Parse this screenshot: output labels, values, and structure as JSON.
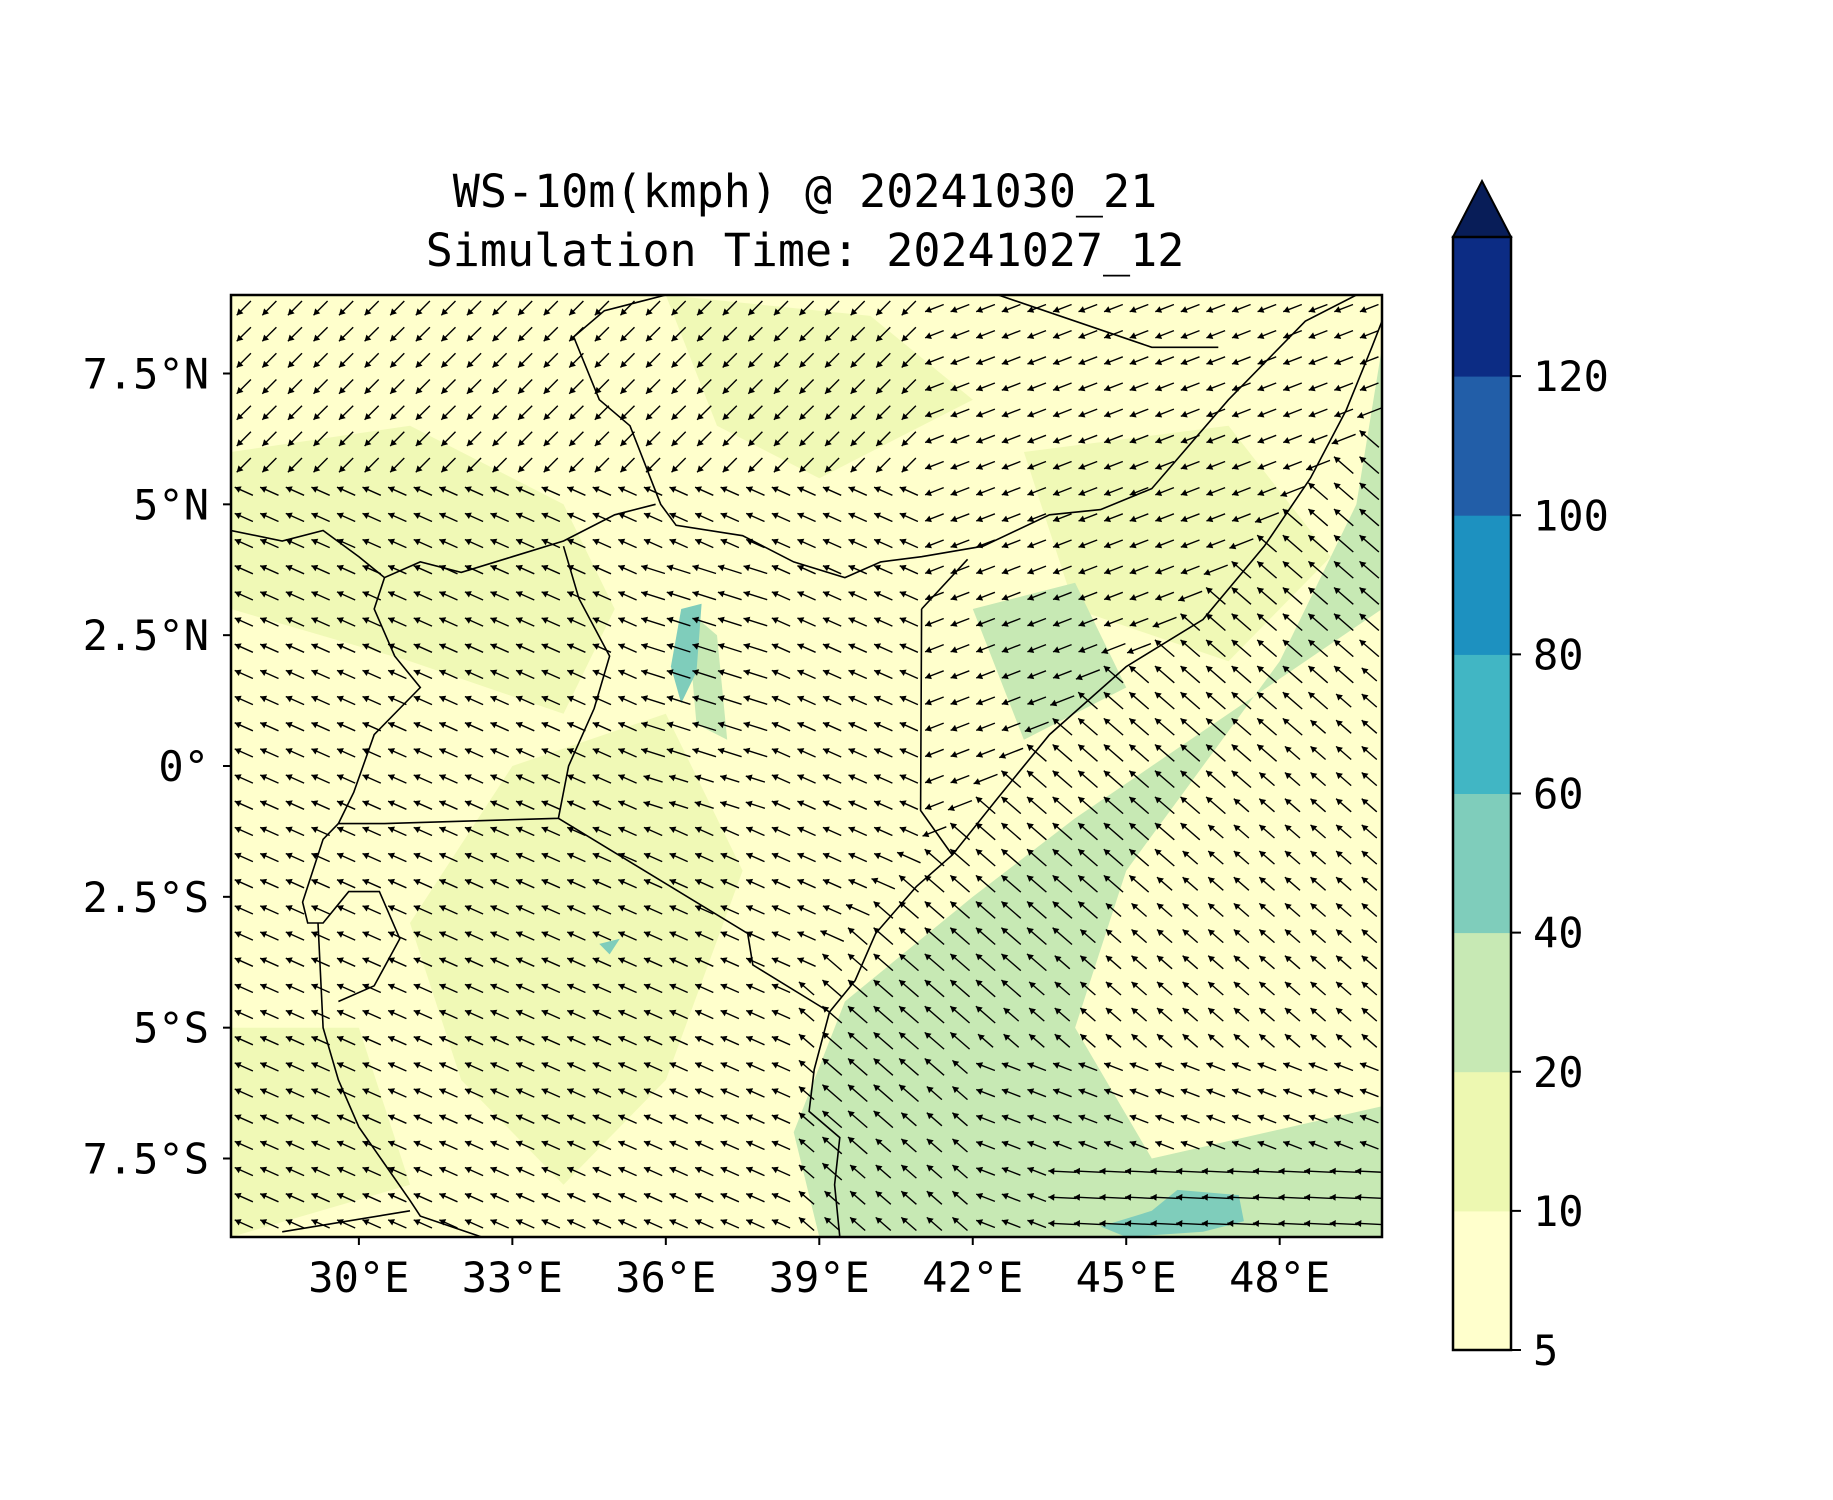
{
  "figure": {
    "title_line1": "WS-10m(kmph) @ 20241030_21",
    "title_line2": "Simulation Time: 20241027_12"
  },
  "map": {
    "lon_range": [
      27.5,
      50.0
    ],
    "lat_range": [
      -9.0,
      9.0
    ],
    "x_ticks": [
      "30°E",
      "33°E",
      "36°E",
      "39°E",
      "42°E",
      "45°E",
      "48°E"
    ],
    "x_tick_values": [
      30,
      33,
      36,
      39,
      42,
      45,
      48
    ],
    "y_ticks": [
      "7.5°N",
      "5°N",
      "2.5°N",
      "0°",
      "2.5°S",
      "5°S",
      "7.5°S"
    ],
    "y_tick_values": [
      7.5,
      5,
      2.5,
      0,
      -2.5,
      -5,
      -7.5
    ],
    "background_color": "#ffffcc",
    "wind_arrow_color": "#000000",
    "border_color": "#000000"
  },
  "colorbar": {
    "labels": [
      "5",
      "10",
      "20",
      "40",
      "60",
      "80",
      "100",
      "120"
    ],
    "levels": [
      5,
      10,
      20,
      40,
      60,
      80,
      100,
      120
    ],
    "colors": [
      "#ffffcc",
      "#edf8b1",
      "#c7e9b4",
      "#7fcdbb",
      "#41b6c4",
      "#1d91c0",
      "#225ea8",
      "#0c2c84"
    ],
    "extend": "max",
    "extend_color": "#081d58"
  }
}
